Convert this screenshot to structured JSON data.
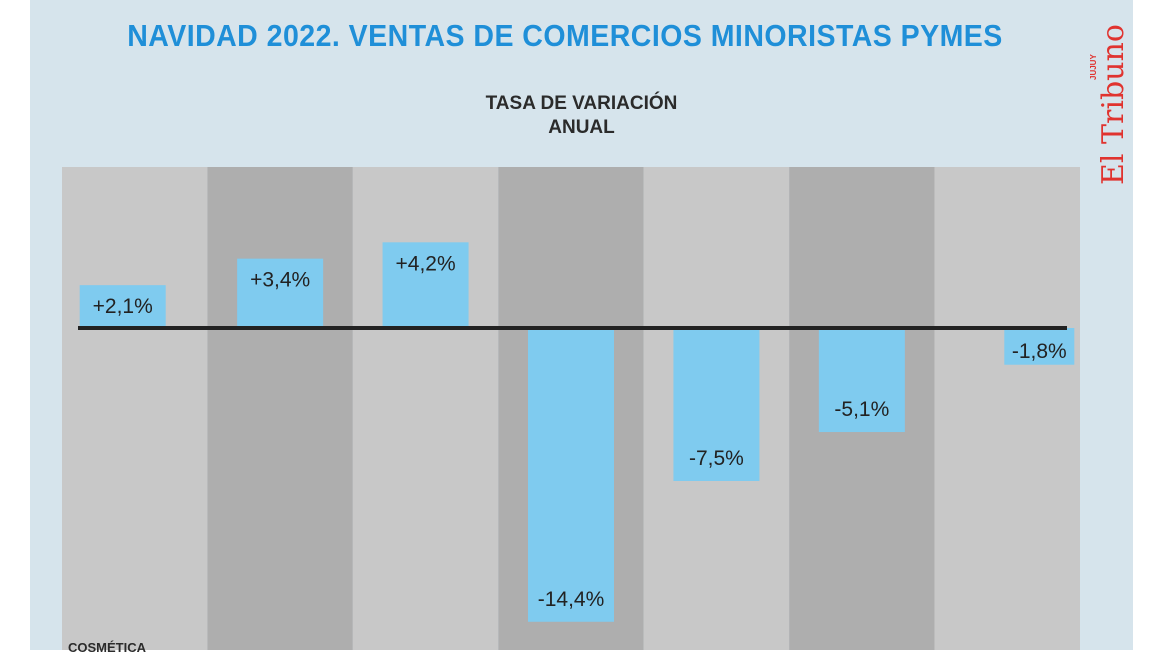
{
  "title": "NAVIDAD 2022. VENTAS DE COMERCIOS MINORISTAS PYMES",
  "subtitle_line1": "TASA DE VARIACIÓN",
  "subtitle_line2": "ANUAL",
  "logo": {
    "name": "El Tribuno",
    "region": "JUJUY"
  },
  "bottom_label": "COSMÉTICA",
  "colors": {
    "background": "#d6e4ec",
    "title": "#1f8fd8",
    "bar": "#7fcbef",
    "column_light": "#c8c8c8",
    "column_dark": "#aeaeae",
    "logo": "#e0332f",
    "baseline": "#222222"
  },
  "chart_data": {
    "type": "bar",
    "title": "NAVIDAD 2022. VENTAS DE COMERCIOS MINORISTAS PYMES",
    "subtitle": "TASA DE VARIACIÓN ANUAL",
    "categories": [
      "COSMÉTICA",
      "",
      "",
      "",
      "",
      "",
      ""
    ],
    "values": [
      2.1,
      3.4,
      4.2,
      -14.4,
      -7.5,
      -5.1,
      -1.8
    ],
    "data_labels": [
      "+2,1%",
      "+3,4%",
      "+4,2%",
      "-14,4%",
      "-7,5%",
      "-5,1%",
      "-1,8%"
    ],
    "ylim": [
      -15,
      8
    ],
    "grid": false,
    "legend": "none"
  }
}
